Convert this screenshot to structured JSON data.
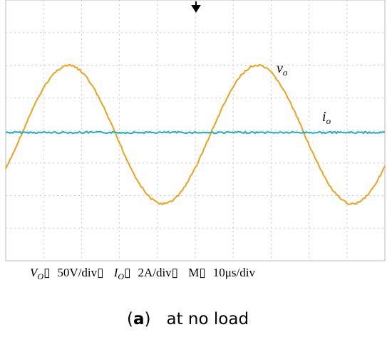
{
  "waveform_labels": [
    {
      "symbol": "v",
      "subscript": "o"
    },
    {
      "symbol": "i",
      "subscript": "o"
    }
  ],
  "scale_settings": [
    {
      "name": "V",
      "subscript": "O",
      "mark": "▯",
      "scale": "50V/div▯"
    },
    {
      "name": "I",
      "subscript": "O",
      "mark": "▯",
      "scale": "2A/div▯"
    },
    {
      "name": "M",
      "mark": "▯",
      "scale": "10μs/div"
    }
  ],
  "caption": {
    "label": "a",
    "text": "at no load"
  }
}
